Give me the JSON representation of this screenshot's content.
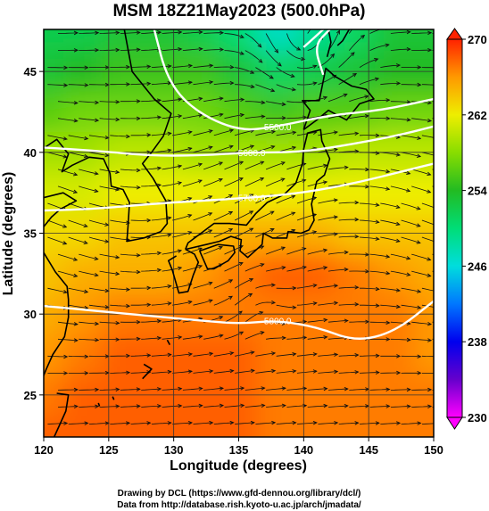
{
  "chart_data": {
    "type": "heatmap",
    "title": "MSM 18Z21May2023 (500.0hPa)",
    "xlabel": "Longitude (degrees)",
    "ylabel": "Latitude  (degrees)",
    "xlim": [
      120,
      150
    ],
    "ylim": [
      22.4,
      47.6
    ],
    "x_ticks": [
      120,
      125,
      130,
      135,
      140,
      145,
      150
    ],
    "y_ticks": [
      25,
      30,
      35,
      40,
      45
    ],
    "x_tick_labels": [
      "120",
      "125",
      "130",
      "135",
      "140",
      "145",
      "150"
    ],
    "y_tick_labels": [
      "25",
      "30",
      "35",
      "40",
      "45"
    ],
    "grid": true,
    "colorbar": {
      "min": 230,
      "max": 270,
      "ticks": [
        230,
        238,
        246,
        254,
        262,
        270
      ],
      "tick_labels": [
        "230",
        "238",
        "246",
        "254",
        "262",
        "270"
      ],
      "stops": [
        {
          "value": 230,
          "color": "#ff00ff"
        },
        {
          "value": 234,
          "color": "#6600cc"
        },
        {
          "value": 238,
          "color": "#0000ee"
        },
        {
          "value": 242,
          "color": "#0077ff"
        },
        {
          "value": 246,
          "color": "#00dddd"
        },
        {
          "value": 250,
          "color": "#00dd77"
        },
        {
          "value": 254,
          "color": "#22bb22"
        },
        {
          "value": 258,
          "color": "#88dd00"
        },
        {
          "value": 262,
          "color": "#eeee00"
        },
        {
          "value": 266,
          "color": "#ff9900"
        },
        {
          "value": 270,
          "color": "#ff2200"
        }
      ]
    },
    "temperature_field_K": [
      {
        "lat": 47.6,
        "lon": [
          252,
          252,
          253,
          253,
          252,
          250,
          247,
          249,
          251,
          253,
          253
        ]
      },
      {
        "lat": 45,
        "lon": [
          253,
          254,
          255,
          255,
          255,
          253,
          251,
          252,
          253,
          254,
          254
        ]
      },
      {
        "lat": 42.5,
        "lon": [
          256,
          257,
          257,
          257,
          257,
          256,
          255,
          256,
          256,
          257,
          257
        ]
      },
      {
        "lat": 40,
        "lon": [
          259,
          259,
          260,
          260,
          259,
          259,
          259,
          259,
          260,
          260,
          260
        ]
      },
      {
        "lat": 37.5,
        "lon": [
          261,
          261,
          262,
          262,
          262,
          262,
          262,
          262,
          262,
          262,
          262
        ]
      },
      {
        "lat": 35,
        "lon": [
          263,
          263,
          264,
          264,
          264,
          265,
          265,
          265,
          264,
          264,
          264
        ]
      },
      {
        "lat": 32.5,
        "lon": [
          264,
          265,
          265,
          265,
          266,
          267,
          268,
          268,
          267,
          266,
          265
        ]
      },
      {
        "lat": 30,
        "lon": [
          265,
          266,
          267,
          267,
          267,
          267,
          267,
          267,
          267,
          267,
          266
        ]
      },
      {
        "lat": 27.5,
        "lon": [
          266,
          267,
          268,
          268,
          268,
          268,
          267,
          267,
          267,
          267,
          266
        ]
      },
      {
        "lat": 25,
        "lon": [
          267,
          268,
          268,
          268,
          268,
          268,
          267,
          267,
          267,
          267,
          267
        ]
      },
      {
        "lat": 22.4,
        "lon": [
          268,
          268,
          268,
          268,
          268,
          268,
          267,
          267,
          267,
          267,
          267
        ]
      }
    ],
    "field_lons": [
      120,
      123,
      126,
      129,
      132,
      135,
      138,
      141,
      144,
      147,
      150
    ],
    "contours": [
      {
        "label": "5500.0",
        "points": [
          [
            128.5,
            47.6
          ],
          [
            129.5,
            44.5
          ],
          [
            131.5,
            42.6
          ],
          [
            135,
            41.3
          ],
          [
            138,
            41.6
          ],
          [
            142,
            42.3
          ],
          [
            146,
            42.6
          ],
          [
            150,
            43.3
          ]
        ]
      },
      {
        "label": "5600.0",
        "points": [
          [
            120,
            40.3
          ],
          [
            124,
            40.1
          ],
          [
            128,
            39.8
          ],
          [
            132,
            39.8
          ],
          [
            136,
            40.0
          ],
          [
            139.5,
            40.0
          ],
          [
            143,
            40.4
          ],
          [
            147,
            41.0
          ],
          [
            150,
            41.6
          ]
        ]
      },
      {
        "label": "5700.0",
        "points": [
          [
            120,
            36.4
          ],
          [
            124,
            36.5
          ],
          [
            128,
            36.8
          ],
          [
            132,
            37.0
          ],
          [
            136,
            37.2
          ],
          [
            140,
            37.5
          ],
          [
            144,
            38.1
          ],
          [
            148,
            38.9
          ],
          [
            150,
            39.3
          ]
        ]
      },
      {
        "label": "5800.0",
        "points": [
          [
            120,
            30.5
          ],
          [
            124,
            30.2
          ],
          [
            128,
            29.9
          ],
          [
            132,
            29.6
          ],
          [
            135,
            29.4
          ],
          [
            138,
            29.6
          ],
          [
            141,
            29.2
          ],
          [
            144,
            28.3
          ],
          [
            147,
            28.9
          ],
          [
            150,
            30.8
          ]
        ]
      },
      {
        "label": "",
        "points": [
          [
            140,
            46.5
          ],
          [
            141.5,
            47.6
          ]
        ]
      },
      {
        "label": "",
        "points": [
          [
            141.5,
            44.8
          ],
          [
            140.8,
            46.6
          ],
          [
            142,
            47.6
          ]
        ]
      }
    ],
    "flow": {
      "description_free": true,
      "trough_lon": 140,
      "trough_lat": 46.5
    },
    "coastline_lonlat": [
      [
        [
          126.2,
          47.6
        ],
        [
          126.8,
          45.0
        ],
        [
          128.5,
          43.3
        ],
        [
          129.8,
          42.4
        ],
        [
          129.2,
          41.0
        ],
        [
          128.3,
          40.0
        ],
        [
          127.6,
          39.3
        ],
        [
          128.4,
          38.4
        ],
        [
          129.4,
          37.0
        ],
        [
          129.5,
          35.6
        ],
        [
          129.0,
          35.1
        ],
        [
          127.7,
          34.7
        ],
        [
          126.4,
          34.5
        ],
        [
          126.5,
          35.6
        ],
        [
          126.6,
          36.9
        ],
        [
          126.1,
          37.7
        ],
        [
          125.2,
          37.9
        ],
        [
          125.1,
          38.7
        ],
        [
          124.6,
          39.6
        ],
        [
          123.5,
          39.7
        ],
        [
          122.2,
          39.2
        ],
        [
          121.4,
          38.8
        ],
        [
          121.9,
          39.9
        ],
        [
          121.0,
          40.8
        ],
        [
          119.9,
          40.2
        ]
      ],
      [
        [
          120.0,
          37.2
        ],
        [
          121.5,
          37.5
        ],
        [
          122.5,
          37.0
        ],
        [
          121.3,
          36.5
        ],
        [
          120.6,
          36.0
        ],
        [
          119.9,
          35.3
        ]
      ],
      [
        [
          120.0,
          33.8
        ],
        [
          120.9,
          32.6
        ],
        [
          121.8,
          31.7
        ],
        [
          121.9,
          30.9
        ],
        [
          121.9,
          29.8
        ],
        [
          121.6,
          28.6
        ],
        [
          120.7,
          27.5
        ],
        [
          120.2,
          26.6
        ],
        [
          119.9,
          26.0
        ]
      ],
      [
        [
          121.0,
          25.1
        ],
        [
          121.9,
          25.0
        ],
        [
          121.7,
          24.0
        ],
        [
          120.8,
          22.4
        ]
      ],
      [
        [
          130.9,
          34.0
        ],
        [
          132.5,
          34.3
        ],
        [
          133.5,
          34.5
        ],
        [
          134.4,
          34.8
        ],
        [
          135.2,
          34.6
        ],
        [
          135.1,
          33.9
        ],
        [
          135.7,
          33.5
        ],
        [
          136.8,
          34.3
        ],
        [
          136.9,
          35.0
        ],
        [
          137.6,
          34.7
        ],
        [
          138.7,
          34.7
        ],
        [
          138.8,
          35.1
        ],
        [
          139.8,
          35.0
        ],
        [
          140.4,
          35.2
        ],
        [
          140.8,
          35.8
        ],
        [
          140.6,
          36.8
        ],
        [
          141.0,
          38.2
        ],
        [
          141.6,
          38.6
        ],
        [
          142.0,
          39.6
        ],
        [
          141.4,
          40.7
        ],
        [
          141.3,
          41.4
        ],
        [
          140.3,
          41.2
        ],
        [
          140.0,
          40.2
        ],
        [
          139.9,
          39.3
        ],
        [
          139.4,
          38.1
        ],
        [
          138.5,
          37.4
        ],
        [
          137.2,
          36.9
        ],
        [
          136.3,
          36.2
        ],
        [
          135.6,
          35.5
        ],
        [
          134.3,
          35.6
        ],
        [
          133.1,
          35.6
        ],
        [
          132.1,
          35.0
        ],
        [
          131.1,
          34.4
        ],
        [
          130.9,
          34.0
        ]
      ],
      [
        [
          130.2,
          33.6
        ],
        [
          129.6,
          33.3
        ],
        [
          129.9,
          32.7
        ],
        [
          130.4,
          31.3
        ],
        [
          131.1,
          31.4
        ],
        [
          131.5,
          32.4
        ],
        [
          131.9,
          33.2
        ],
        [
          131.6,
          33.7
        ],
        [
          130.9,
          34.0
        ]
      ],
      [
        [
          132.0,
          33.9
        ],
        [
          132.6,
          32.8
        ],
        [
          133.1,
          32.8
        ],
        [
          134.2,
          33.3
        ],
        [
          134.7,
          33.8
        ],
        [
          134.6,
          34.2
        ],
        [
          133.4,
          34.3
        ],
        [
          132.0,
          33.9
        ]
      ],
      [
        [
          140.0,
          41.4
        ],
        [
          140.5,
          42.6
        ],
        [
          139.9,
          43.2
        ],
        [
          141.2,
          43.2
        ],
        [
          141.7,
          45.2
        ],
        [
          142.4,
          44.7
        ],
        [
          143.7,
          44.1
        ],
        [
          144.8,
          43.9
        ],
        [
          145.4,
          43.3
        ],
        [
          144.3,
          43.0
        ],
        [
          143.3,
          42.0
        ],
        [
          141.9,
          42.6
        ],
        [
          141.0,
          42.0
        ],
        [
          140.0,
          41.4
        ]
      ],
      [
        [
          141.8,
          45.9
        ],
        [
          142.1,
          46.8
        ],
        [
          141.9,
          47.6
        ]
      ],
      [
        [
          143.5,
          47.6
        ],
        [
          143.0,
          46.9
        ],
        [
          142.6,
          46.6
        ]
      ],
      [
        [
          129.5,
          28.4
        ],
        [
          129.7,
          28.1
        ]
      ],
      [
        [
          127.7,
          26.9
        ],
        [
          128.3,
          26.6
        ],
        [
          127.6,
          26.0
        ]
      ],
      [
        [
          125.3,
          24.9
        ],
        [
          125.4,
          24.7
        ]
      ],
      [
        [
          124.2,
          24.5
        ],
        [
          124.3,
          24.3
        ]
      ]
    ],
    "credits": [
      "Drawing by DCL (https://www.gfd-dennou.org/library/dcl/)",
      "Data from http://database.rish.kyoto-u.ac.jp/arch/jmadata/"
    ]
  }
}
